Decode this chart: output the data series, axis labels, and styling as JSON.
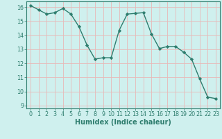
{
  "x": [
    0,
    1,
    2,
    3,
    4,
    5,
    6,
    7,
    8,
    9,
    10,
    11,
    12,
    13,
    14,
    15,
    16,
    17,
    18,
    19,
    20,
    21,
    22,
    23
  ],
  "y": [
    16.1,
    15.8,
    15.5,
    15.6,
    15.9,
    15.5,
    14.6,
    13.3,
    12.3,
    12.4,
    12.4,
    14.35,
    15.5,
    15.55,
    15.6,
    14.1,
    13.05,
    13.2,
    13.2,
    12.8,
    12.3,
    10.9,
    9.6,
    9.5
  ],
  "line_color": "#2e7d6e",
  "marker": "D",
  "marker_size": 2.2,
  "bg_color": "#cff0ee",
  "grid_color": "#e8b8b8",
  "xlabel": "Humidex (Indice chaleur)",
  "ylim": [
    8.8,
    16.4
  ],
  "xlim": [
    -0.5,
    23.5
  ],
  "yticks": [
    9,
    10,
    11,
    12,
    13,
    14,
    15,
    16
  ],
  "xticks": [
    0,
    1,
    2,
    3,
    4,
    5,
    6,
    7,
    8,
    9,
    10,
    11,
    12,
    13,
    14,
    15,
    16,
    17,
    18,
    19,
    20,
    21,
    22,
    23
  ],
  "tick_fontsize": 5.8,
  "xlabel_fontsize": 7.0,
  "line_width": 1.0
}
